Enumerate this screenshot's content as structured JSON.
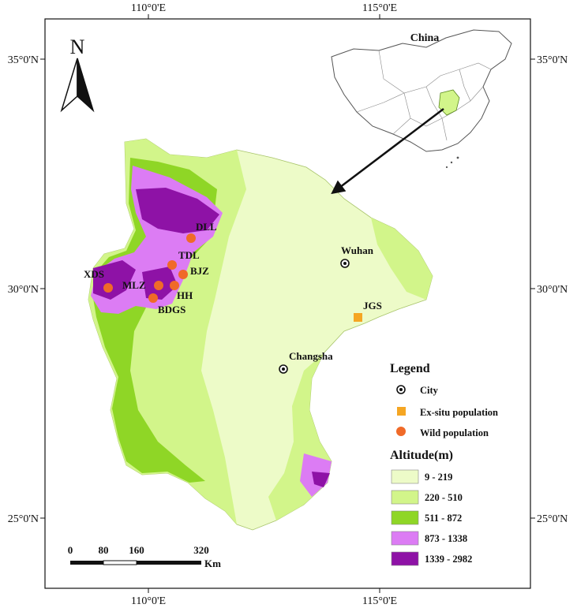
{
  "map": {
    "north_label": "N",
    "inset_label": "China",
    "coords": {
      "top_110": "110°0'E",
      "top_115": "115°0'E",
      "bottom_110": "110°0'E",
      "bottom_115": "115°0'E",
      "left_35": "35°0'N",
      "left_30": "30°0'N",
      "left_25": "25°0'N",
      "right_35": "35°0'N",
      "right_30": "30°0'N",
      "right_25": "25°0'N"
    },
    "cities": [
      {
        "name": "Wuhan"
      },
      {
        "name": "Changsha"
      }
    ],
    "exsitu": [
      {
        "name": "JGS"
      }
    ],
    "wild": [
      {
        "name": "DLL"
      },
      {
        "name": "TDL"
      },
      {
        "name": "BJZ"
      },
      {
        "name": "XDS"
      },
      {
        "name": "MLZ"
      },
      {
        "name": "HH"
      },
      {
        "name": "BDGS"
      }
    ],
    "scalebar": {
      "ticks": [
        "0",
        "80",
        "160",
        "320"
      ],
      "unit": "Km"
    },
    "legend": {
      "title": "Legend",
      "city": "City",
      "exsitu": "Ex-situ population",
      "wild": "Wild population",
      "altitude_title": "Altitude(m)",
      "classes": [
        {
          "label": "9 - 219",
          "color": "#edfbc8"
        },
        {
          "label": "220 - 510",
          "color": "#d2f58a"
        },
        {
          "label": "511 - 872",
          "color": "#8fd626"
        },
        {
          "label": "873 - 1338",
          "color": "#dc7cf4"
        },
        {
          "label": "1339 - 2982",
          "color": "#8e12a6"
        }
      ]
    },
    "colors": {
      "city": "#111111",
      "exsitu": "#f5a623",
      "wild": "#f06a28"
    }
  }
}
